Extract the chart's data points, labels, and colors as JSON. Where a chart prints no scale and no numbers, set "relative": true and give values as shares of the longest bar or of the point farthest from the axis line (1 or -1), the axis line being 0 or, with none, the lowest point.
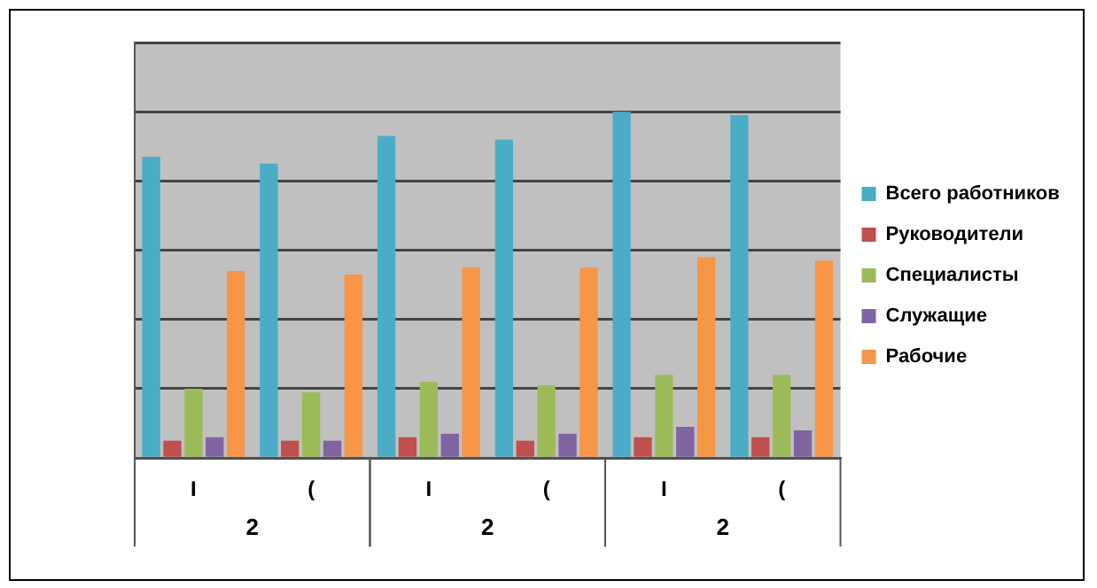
{
  "chart_data": {
    "type": "bar",
    "relative": true,
    "categories": [
      "I",
      "(",
      "I",
      "(",
      "I",
      "("
    ],
    "series": [
      {
        "name": "Всего работников",
        "color": "#4bacc6",
        "values": [
          0.87,
          0.85,
          0.93,
          0.92,
          1,
          0.99
        ]
      },
      {
        "name": "Руководители",
        "color": "#c0504d",
        "values": [
          0.05,
          0.05,
          0.06,
          0.05,
          0.06,
          0.06
        ]
      },
      {
        "name": "Специалисты",
        "color": "#9bbb59",
        "values": [
          0.2,
          0.19,
          0.22,
          0.21,
          0.24,
          0.24
        ]
      },
      {
        "name": "Служащие",
        "color": "#8064a2",
        "values": [
          0.06,
          0.05,
          0.07,
          0.07,
          0.09,
          0.08
        ]
      },
      {
        "name": "Рабочие",
        "color": "#f79646",
        "values": [
          0.54,
          0.53,
          0.55,
          0.55,
          0.58,
          0.57
        ]
      }
    ],
    "annotations": [
      "2",
      "2",
      "2"
    ],
    "grid": "y",
    "legend": "right"
  }
}
